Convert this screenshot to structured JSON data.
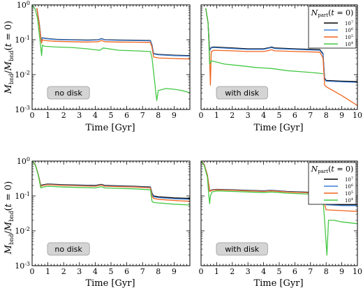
{
  "figure": {
    "xlabel": "Time [Gyr]",
    "ylabel": "M_bnd/M_bnd(t = 0)",
    "legend_title": "N_part(t = 0)",
    "series_colors": [
      "#000000",
      "#3d7fd6",
      "#f0641e",
      "#44c844"
    ]
  },
  "chart_data": [
    {
      "type": "line",
      "panel": "top-left",
      "annotation": "no disk",
      "xlabel": "Time [Gyr]",
      "ylabel": "M_bnd/M_bnd(t = 0)",
      "xlim": [
        0,
        10
      ],
      "xticks": [
        0,
        1,
        2,
        3,
        4,
        5,
        6,
        7,
        8,
        9
      ],
      "ylim": [
        0.001,
        1
      ],
      "yscale": "log",
      "legend": false,
      "series": [
        {
          "name": "10^7",
          "color": "#000000",
          "x": [
            0.3,
            0.45,
            0.55,
            0.6,
            0.65,
            0.8,
            1.5,
            2.5,
            3.5,
            4.2,
            4.4,
            4.6,
            5.5,
            6.5,
            7.5,
            7.6,
            7.7,
            8,
            9,
            10
          ],
          "y": [
            0.8,
            0.3,
            0.12,
            0.09,
            0.115,
            0.11,
            0.103,
            0.1,
            0.098,
            0.1,
            0.108,
            0.1,
            0.098,
            0.097,
            0.095,
            0.07,
            0.04,
            0.038,
            0.036,
            0.035
          ]
        },
        {
          "name": "10^6",
          "color": "#3d7fd6",
          "x": [
            0.3,
            0.45,
            0.55,
            0.6,
            0.65,
            0.8,
            1.5,
            2.5,
            3.5,
            4.2,
            4.4,
            4.6,
            5.5,
            6.5,
            7.5,
            7.6,
            7.7,
            8,
            9,
            10
          ],
          "y": [
            0.8,
            0.3,
            0.12,
            0.09,
            0.113,
            0.108,
            0.101,
            0.098,
            0.096,
            0.098,
            0.106,
            0.098,
            0.096,
            0.095,
            0.093,
            0.068,
            0.039,
            0.037,
            0.035,
            0.034
          ]
        },
        {
          "name": "10^5",
          "color": "#f0641e",
          "x": [
            0.3,
            0.45,
            0.55,
            0.6,
            0.65,
            0.8,
            1.5,
            2.5,
            3.5,
            4.2,
            4.4,
            4.6,
            5.5,
            6.5,
            7.5,
            7.6,
            7.7,
            8,
            9,
            10
          ],
          "y": [
            0.8,
            0.28,
            0.11,
            0.08,
            0.1,
            0.095,
            0.09,
            0.088,
            0.086,
            0.088,
            0.095,
            0.088,
            0.086,
            0.085,
            0.084,
            0.06,
            0.032,
            0.03,
            0.029,
            0.028
          ]
        },
        {
          "name": "10^4",
          "color": "#44c844",
          "x": [
            0,
            0.2,
            0.35,
            0.45,
            0.55,
            0.6,
            0.65,
            0.8,
            1.5,
            2.5,
            3.5,
            4.3,
            4.5,
            5.5,
            6.5,
            7.5,
            7.6,
            7.7,
            7.9,
            8,
            8.5,
            9,
            9.5,
            10
          ],
          "y": [
            1,
            0.75,
            0.4,
            0.15,
            0.06,
            0.035,
            0.07,
            0.065,
            0.062,
            0.06,
            0.055,
            0.05,
            0.058,
            0.05,
            0.048,
            0.046,
            0.03,
            0.012,
            0.0018,
            0.0035,
            0.004,
            0.0038,
            0.0035,
            0.003
          ]
        }
      ]
    },
    {
      "type": "line",
      "panel": "top-right",
      "annotation": "with disk",
      "xlim": [
        0,
        10
      ],
      "xticks": [
        0,
        1,
        2,
        3,
        4,
        5,
        6,
        7,
        8,
        9,
        10
      ],
      "ylim": [
        0.001,
        1
      ],
      "yscale": "log",
      "legend": true,
      "legend_placement": "top-right",
      "legend_entries": [
        "10^7",
        "10^6",
        "10^5",
        "10^4"
      ],
      "series": [
        {
          "name": "10^7",
          "color": "#000000",
          "x": [
            0.3,
            0.45,
            0.55,
            0.65,
            0.8,
            2,
            3,
            4,
            4.4,
            4.5,
            4.7,
            6,
            7.6,
            7.8,
            7.9,
            8,
            9,
            10
          ],
          "y": [
            0.8,
            0.3,
            0.05,
            0.06,
            0.062,
            0.058,
            0.055,
            0.055,
            0.06,
            0.062,
            0.058,
            0.055,
            0.052,
            0.04,
            0.008,
            0.0068,
            0.0065,
            0.0063
          ]
        },
        {
          "name": "10^6",
          "color": "#3d7fd6",
          "x": [
            0.3,
            0.45,
            0.55,
            0.65,
            0.8,
            2,
            3,
            4,
            4.4,
            4.5,
            4.7,
            6,
            7.6,
            7.8,
            7.9,
            8,
            9,
            10
          ],
          "y": [
            0.8,
            0.3,
            0.048,
            0.058,
            0.06,
            0.056,
            0.053,
            0.053,
            0.058,
            0.06,
            0.056,
            0.053,
            0.05,
            0.038,
            0.0075,
            0.0065,
            0.0062,
            0.006
          ]
        },
        {
          "name": "10^5",
          "color": "#f0641e",
          "x": [
            0.3,
            0.45,
            0.55,
            0.6,
            0.65,
            0.8,
            2,
            3,
            4,
            4.4,
            4.5,
            4.7,
            6,
            7.6,
            7.8,
            7.9,
            8,
            9,
            10
          ],
          "y": [
            0.8,
            0.3,
            0.03,
            0.005,
            0.045,
            0.05,
            0.048,
            0.046,
            0.046,
            0.05,
            0.052,
            0.048,
            0.046,
            0.044,
            0.03,
            0.005,
            0.0045,
            0.0025,
            0.0013
          ]
        },
        {
          "name": "10^4",
          "color": "#44c844",
          "x": [
            0.3,
            0.45,
            0.55,
            0.65,
            0.8,
            1.5,
            2.5,
            3.5,
            4.5,
            5.5,
            6.5,
            7.5,
            7.8
          ],
          "y": [
            0.8,
            0.3,
            0.02,
            0.025,
            0.024,
            0.02,
            0.018,
            0.016,
            0.015,
            0.013,
            0.012,
            0.011,
            0.0105
          ]
        }
      ]
    },
    {
      "type": "line",
      "panel": "bottom-left",
      "annotation": "no disk",
      "xlabel": "Time [Gyr]",
      "ylabel": "M_bnd/M_bnd(t = 0)",
      "xlim": [
        0,
        10
      ],
      "xticks": [
        0,
        1,
        2,
        3,
        4,
        5,
        6,
        7,
        8,
        9
      ],
      "ylim": [
        0.001,
        1
      ],
      "yscale": "log",
      "legend": false,
      "series": [
        {
          "name": "10^7",
          "color": "#000000",
          "x": [
            0,
            0.2,
            0.4,
            0.55,
            0.7,
            1,
            2,
            3,
            4,
            4.4,
            4.6,
            5.5,
            6.5,
            7.5,
            7.6,
            7.7,
            8,
            9,
            10
          ],
          "y": [
            1,
            0.8,
            0.4,
            0.2,
            0.21,
            0.22,
            0.21,
            0.205,
            0.2,
            0.215,
            0.2,
            0.195,
            0.19,
            0.18,
            0.12,
            0.1,
            0.095,
            0.088,
            0.085
          ]
        },
        {
          "name": "10^6",
          "color": "#3d7fd6",
          "x": [
            0,
            0.2,
            0.4,
            0.55,
            0.7,
            1,
            2,
            3,
            4,
            4.4,
            4.6,
            5.5,
            6.5,
            7.5,
            7.6,
            7.7,
            8,
            9,
            10
          ],
          "y": [
            1,
            0.8,
            0.4,
            0.195,
            0.205,
            0.215,
            0.205,
            0.2,
            0.195,
            0.21,
            0.195,
            0.19,
            0.185,
            0.175,
            0.115,
            0.095,
            0.09,
            0.083,
            0.08
          ]
        },
        {
          "name": "10^5",
          "color": "#f0641e",
          "x": [
            0,
            0.2,
            0.4,
            0.55,
            0.7,
            1,
            2,
            3,
            4,
            4.4,
            4.6,
            5.5,
            6.5,
            7.5,
            7.6,
            7.7,
            8,
            9,
            10
          ],
          "y": [
            1,
            0.8,
            0.4,
            0.19,
            0.2,
            0.21,
            0.2,
            0.195,
            0.19,
            0.205,
            0.19,
            0.185,
            0.18,
            0.17,
            0.1,
            0.085,
            0.08,
            0.074,
            0.07
          ]
        },
        {
          "name": "10^4",
          "color": "#44c844",
          "x": [
            0,
            0.2,
            0.4,
            0.55,
            0.7,
            1,
            2,
            3,
            4,
            4.4,
            4.6,
            5.5,
            6.5,
            7.5,
            7.6,
            7.7,
            8,
            9,
            10
          ],
          "y": [
            1,
            0.78,
            0.38,
            0.17,
            0.18,
            0.19,
            0.18,
            0.175,
            0.17,
            0.185,
            0.17,
            0.165,
            0.16,
            0.15,
            0.07,
            0.065,
            0.063,
            0.058,
            0.055
          ]
        }
      ]
    },
    {
      "type": "line",
      "panel": "bottom-right",
      "annotation": "with disk",
      "xlim": [
        0,
        10
      ],
      "xticks": [
        0,
        1,
        2,
        3,
        4,
        5,
        6,
        7,
        8,
        9,
        10
      ],
      "ylim": [
        0.001,
        1
      ],
      "yscale": "log",
      "legend": true,
      "legend_placement": "top-right",
      "legend_entries": [
        "10^7",
        "10^6",
        "10^5",
        "10^4"
      ],
      "series": [
        {
          "name": "10^7",
          "color": "#000000",
          "x": [
            0,
            0.2,
            0.4,
            0.55,
            0.7,
            1,
            2,
            3,
            4,
            4.5,
            5.5,
            6.5,
            7.5,
            7.8,
            8,
            9,
            10
          ],
          "y": [
            1,
            0.8,
            0.4,
            0.14,
            0.15,
            0.155,
            0.15,
            0.145,
            0.14,
            0.145,
            0.135,
            0.13,
            0.125,
            0.09,
            0.058,
            0.055,
            0.055
          ]
        },
        {
          "name": "10^6",
          "color": "#3d7fd6",
          "x": [
            0,
            0.2,
            0.4,
            0.55,
            0.7,
            1,
            2,
            3,
            4,
            4.5,
            5.5,
            6.5,
            7.5,
            7.8,
            8,
            9,
            10
          ],
          "y": [
            1,
            0.8,
            0.4,
            0.138,
            0.148,
            0.153,
            0.148,
            0.143,
            0.138,
            0.143,
            0.133,
            0.128,
            0.123,
            0.088,
            0.056,
            0.053,
            0.053
          ]
        },
        {
          "name": "10^5",
          "color": "#f0641e",
          "x": [
            0,
            0.2,
            0.4,
            0.55,
            0.7,
            1,
            2,
            3,
            4,
            4.5,
            5.5,
            6.5,
            7.5,
            7.8,
            8,
            9,
            10
          ],
          "y": [
            1,
            0.8,
            0.4,
            0.135,
            0.145,
            0.15,
            0.145,
            0.14,
            0.135,
            0.14,
            0.13,
            0.125,
            0.12,
            0.085,
            0.04,
            0.038,
            0.036
          ]
        },
        {
          "name": "10^4",
          "color": "#44c844",
          "x": [
            0,
            0.2,
            0.4,
            0.5,
            0.55,
            0.6,
            0.7,
            1,
            2,
            3,
            4,
            4.5,
            5.5,
            6.5,
            7.5,
            7.8,
            7.9,
            8.05,
            8.15,
            8.5,
            9,
            10
          ],
          "y": [
            1,
            0.75,
            0.35,
            0.1,
            0.06,
            0.1,
            0.13,
            0.14,
            0.135,
            0.13,
            0.125,
            0.13,
            0.12,
            0.115,
            0.11,
            0.08,
            0.02,
            0.002,
            0.02,
            0.02,
            0.018,
            0.016
          ]
        }
      ]
    }
  ]
}
